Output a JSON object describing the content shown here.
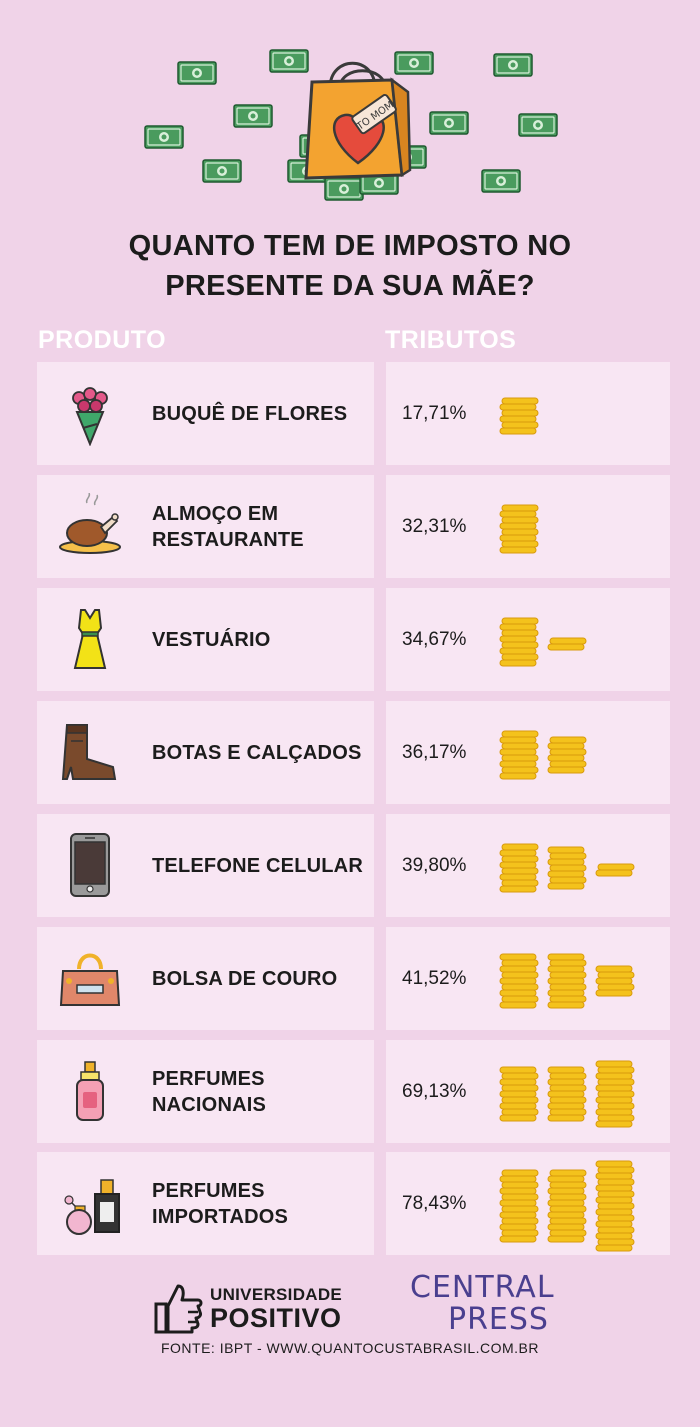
{
  "title_line1": "QUANTO TEM DE IMPOSTO NO",
  "title_line2": "PRESENTE DA SUA MÃE?",
  "columns": {
    "product": "PRODUTO",
    "taxes": "TRIBUTOS"
  },
  "hero": {
    "tag_text": "TO MOM"
  },
  "items": [
    {
      "name": "BUQUÊ DE FLORES",
      "pct": "17,71%",
      "icon": "bouquet-icon",
      "coin_stacks": [
        6
      ]
    },
    {
      "name": "ALMOÇO EM RESTAURANTE",
      "pct": "32,31%",
      "icon": "roast-chicken-icon",
      "coin_stacks": [
        8
      ]
    },
    {
      "name": "VESTUÁRIO",
      "pct": "34,67%",
      "icon": "dress-icon",
      "coin_stacks": [
        8,
        2
      ]
    },
    {
      "name": "BOTAS E CALÇADOS",
      "pct": "36,17%",
      "icon": "boot-icon",
      "coin_stacks": [
        8,
        6
      ]
    },
    {
      "name": "TELEFONE CELULAR",
      "pct": "39,80%",
      "icon": "mobile-phone-icon",
      "coin_stacks": [
        8,
        7,
        2
      ]
    },
    {
      "name": "BOLSA DE COURO",
      "pct": "41,52%",
      "icon": "leather-bag-icon",
      "coin_stacks": [
        9,
        9,
        5
      ]
    },
    {
      "name": "PERFUMES NACIONAIS",
      "pct": "69,13%",
      "icon": "perfume-bottle-icon",
      "coin_stacks": [
        9,
        9,
        11
      ]
    },
    {
      "name": "PERFUMES IMPORTADOS",
      "pct": "78,43%",
      "icon": "perfume-bottles-icon",
      "coin_stacks": [
        12,
        12,
        15
      ]
    }
  ],
  "footer": {
    "up_line1": "UNIVERSIDADE",
    "up_line2": "POSITIVO",
    "cp_line1": "CENTRAL",
    "cp_line2": "PRESS",
    "source": "FONTE: IBPT - WWW.QUANTOCUSTABRASIL.COM.BR"
  },
  "colors": {
    "background": "#f0d3e8",
    "card": "#f8e6f3",
    "coin": "#f4c21c",
    "coin_edge": "#d99a0d"
  }
}
